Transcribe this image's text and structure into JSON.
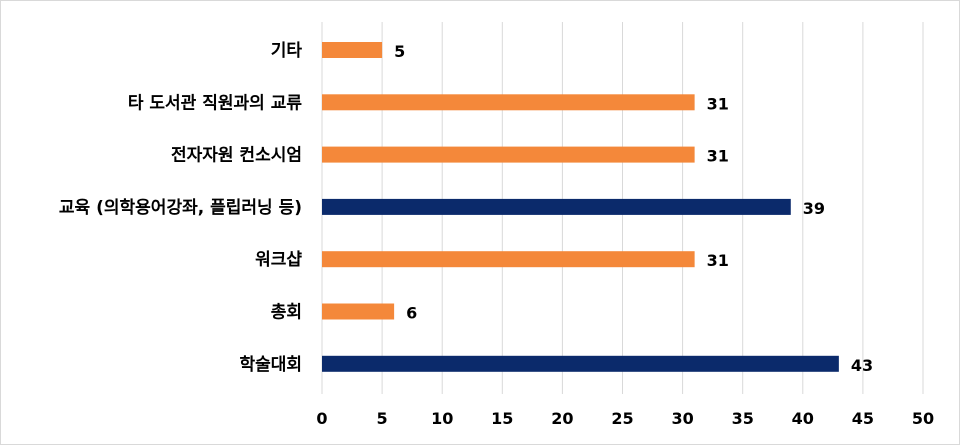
{
  "chart_data": {
    "type": "bar",
    "orientation": "horizontal",
    "categories": [
      "기타",
      "타 도서관 직원과의 교류",
      "전자자원 컨소시엄",
      "교육 (의학용어강좌, 플립러닝 등)",
      "워크샵",
      "총회",
      "학술대회"
    ],
    "values": [
      5,
      31,
      31,
      39,
      31,
      6,
      43
    ],
    "bar_colors": [
      "#f4883a",
      "#f4883a",
      "#f4883a",
      "#0b2a6b",
      "#f4883a",
      "#f4883a",
      "#0b2a6b"
    ],
    "data_labels": [
      "5",
      "31",
      "31",
      "39",
      "31",
      "6",
      "43"
    ],
    "xlim": [
      0,
      50
    ],
    "x_ticks": [
      0,
      5,
      10,
      15,
      20,
      25,
      30,
      35,
      40,
      45,
      50
    ],
    "x_tick_labels": [
      "0",
      "5",
      "10",
      "15",
      "20",
      "25",
      "30",
      "35",
      "40",
      "45",
      "50"
    ],
    "grid": true,
    "legend": "none",
    "title": "",
    "xlabel": "",
    "ylabel": ""
  }
}
